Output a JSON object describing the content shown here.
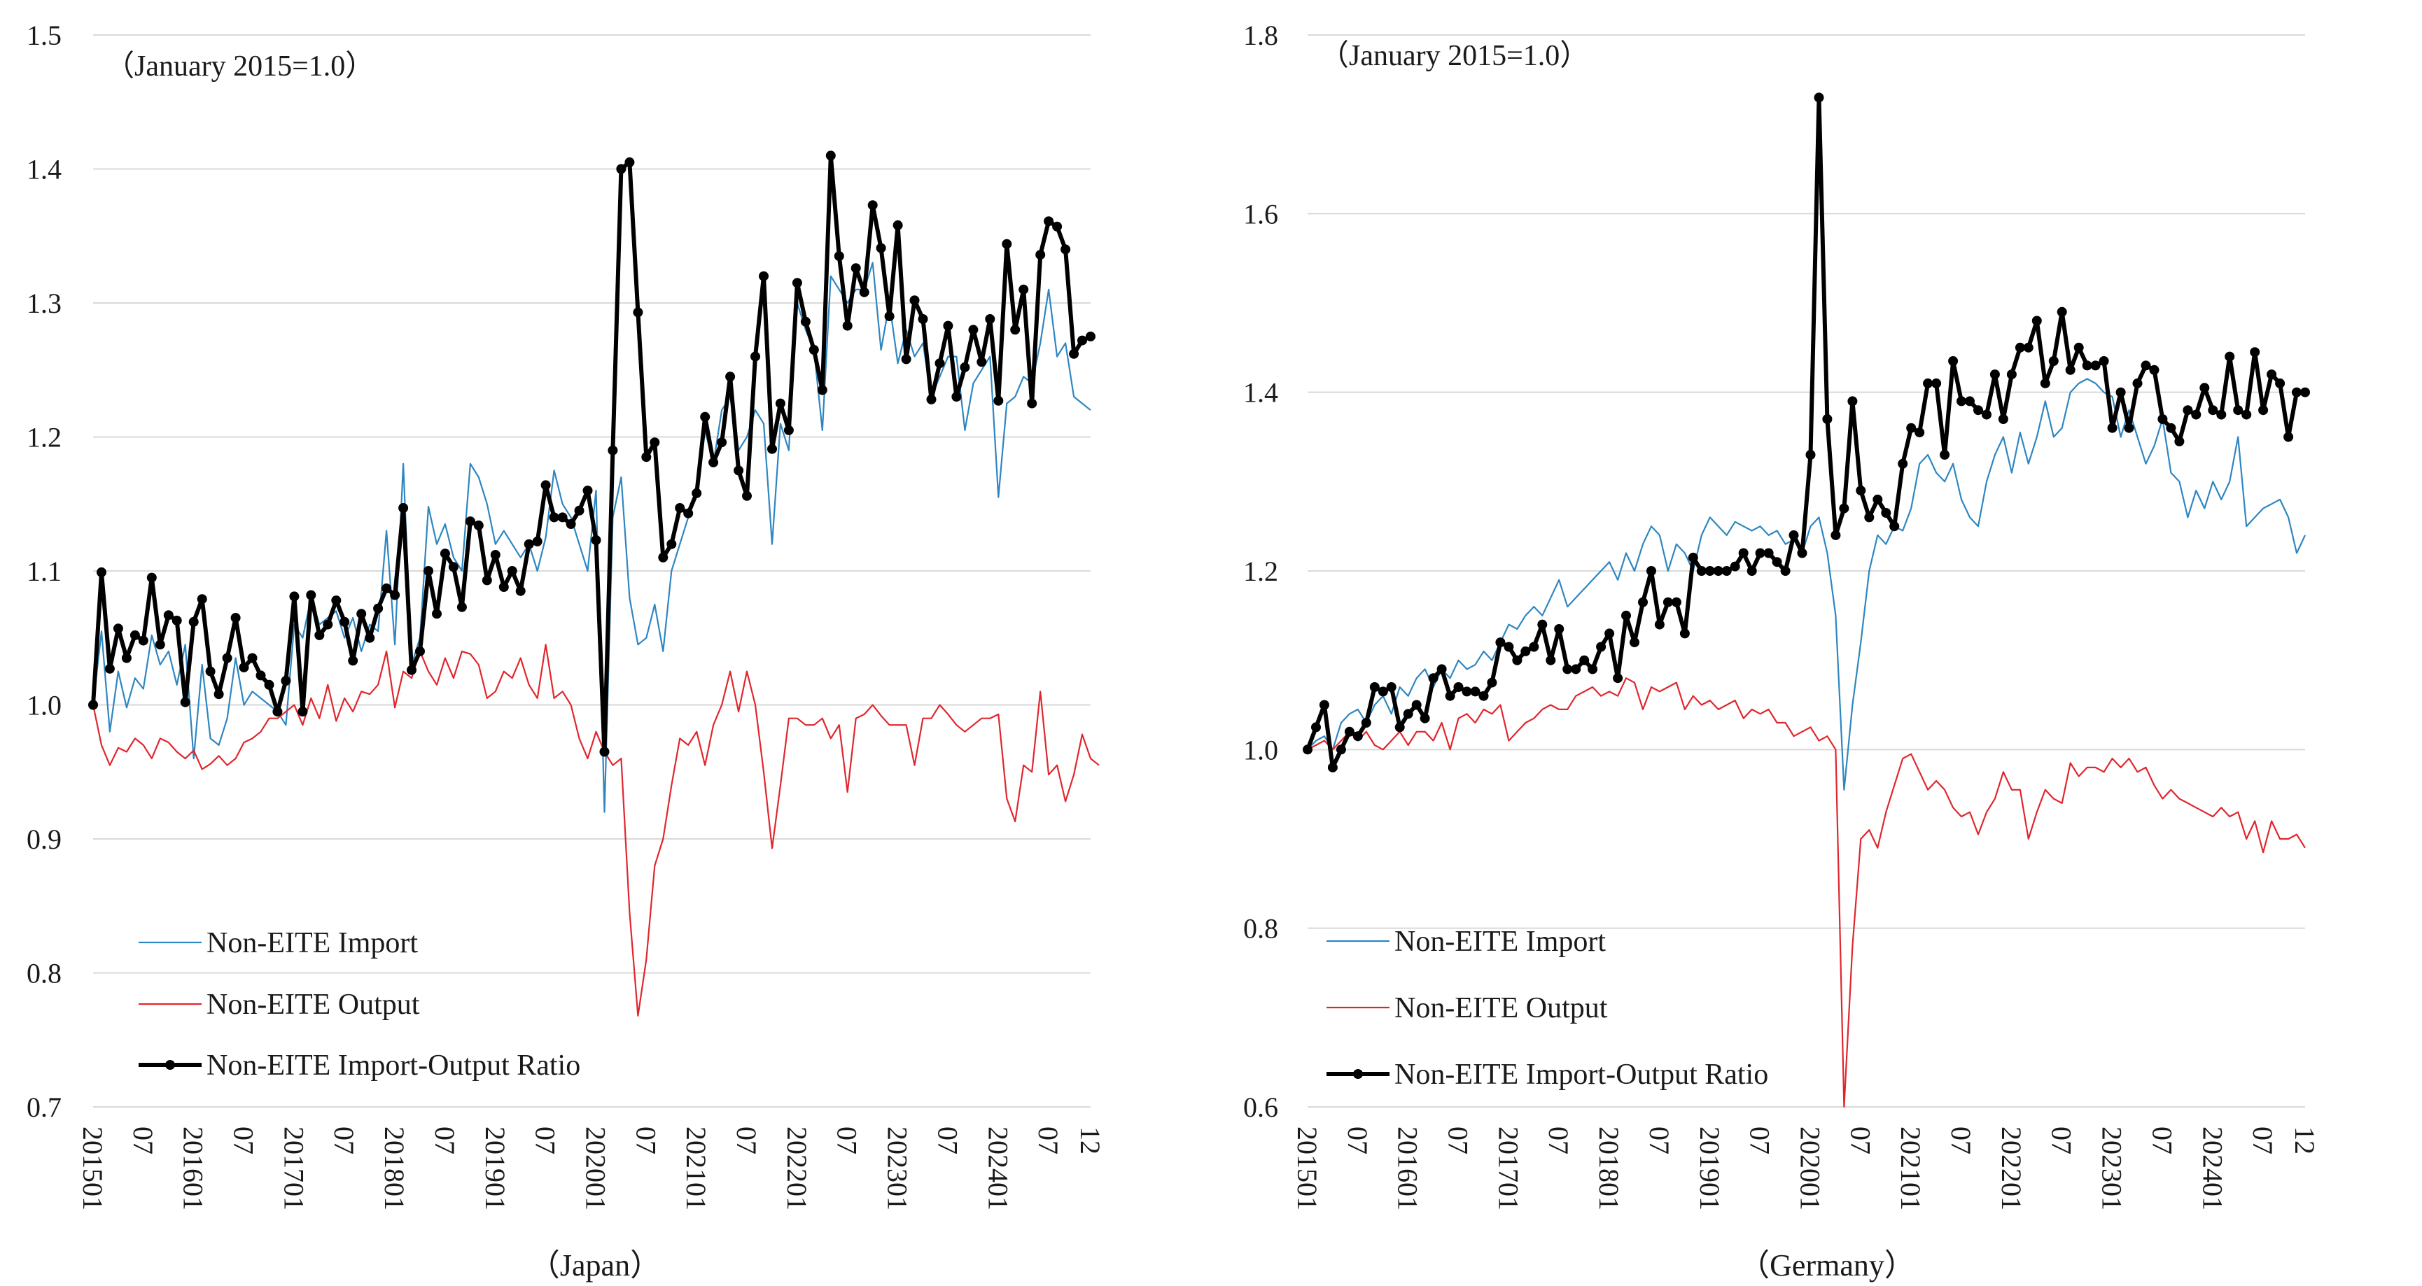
{
  "colors": {
    "import": "#2e86c1",
    "output": "#e0262d",
    "ratio": "#000000",
    "grid": "#d9d9d9"
  },
  "chart_data": [
    {
      "type": "line",
      "caption": "（Japan）",
      "note": "（January 2015=1.0）",
      "ylim": [
        0.7,
        1.5
      ],
      "yticks": [
        0.7,
        0.8,
        0.9,
        1.0,
        1.1,
        1.2,
        1.3,
        1.4,
        1.5
      ],
      "ytick_labels": [
        "0.7",
        "0.8",
        "0.9",
        "1.0",
        "1.1",
        "1.2",
        "1.3",
        "1.4",
        "1.5"
      ],
      "x_start": "201501",
      "n_months": 120,
      "xtick_labels": [
        {
          "i": 0,
          "label": "201501"
        },
        {
          "i": 6,
          "label": "07"
        },
        {
          "i": 12,
          "label": "201601"
        },
        {
          "i": 18,
          "label": "07"
        },
        {
          "i": 24,
          "label": "201701"
        },
        {
          "i": 30,
          "label": "07"
        },
        {
          "i": 36,
          "label": "201801"
        },
        {
          "i": 42,
          "label": "07"
        },
        {
          "i": 48,
          "label": "201901"
        },
        {
          "i": 54,
          "label": "07"
        },
        {
          "i": 60,
          "label": "202001"
        },
        {
          "i": 66,
          "label": "07"
        },
        {
          "i": 72,
          "label": "202101"
        },
        {
          "i": 78,
          "label": "07"
        },
        {
          "i": 84,
          "label": "202201"
        },
        {
          "i": 90,
          "label": "07"
        },
        {
          "i": 96,
          "label": "202301"
        },
        {
          "i": 102,
          "label": "07"
        },
        {
          "i": 108,
          "label": "202401"
        },
        {
          "i": 114,
          "label": "07"
        },
        {
          "i": 119,
          "label": "12"
        }
      ],
      "legend": {
        "position": "bottom-left"
      },
      "series": [
        {
          "name": "Non-EITE Import",
          "key": "import",
          "values": [
            1.0,
            1.055,
            0.98,
            1.025,
            0.998,
            1.02,
            1.012,
            1.052,
            1.03,
            1.04,
            1.015,
            1.045,
            0.96,
            1.03,
            0.975,
            0.97,
            0.99,
            1.035,
            1.0,
            1.01,
            1.005,
            1.0,
            0.995,
            0.985,
            1.06,
            1.05,
            1.08,
            1.06,
            1.065,
            1.07,
            1.05,
            1.065,
            1.04,
            1.06,
            1.055,
            1.13,
            1.045,
            1.18,
            1.03,
            1.05,
            1.148,
            1.12,
            1.135,
            1.11,
            1.1,
            1.18,
            1.17,
            1.15,
            1.12,
            1.13,
            1.12,
            1.11,
            1.12,
            1.1,
            1.125,
            1.175,
            1.15,
            1.14,
            1.12,
            1.1,
            1.16,
            0.92,
            1.14,
            1.17,
            1.08,
            1.045,
            1.05,
            1.075,
            1.04,
            1.1,
            1.12,
            1.14,
            1.16,
            1.205,
            1.18,
            1.22,
            1.23,
            1.19,
            1.2,
            1.22,
            1.21,
            1.12,
            1.21,
            1.19,
            1.3,
            1.28,
            1.265,
            1.205,
            1.32,
            1.31,
            1.3,
            1.31,
            1.31,
            1.33,
            1.265,
            1.3,
            1.255,
            1.28,
            1.26,
            1.27,
            1.23,
            1.245,
            1.26,
            1.26,
            1.205,
            1.24,
            1.25,
            1.26,
            1.155,
            1.225,
            1.23,
            1.245,
            1.24,
            1.27,
            1.31,
            1.26,
            1.27,
            1.23,
            1.225,
            1.22
          ]
        },
        {
          "name": "Non-EITE Output",
          "key": "output",
          "values": [
            1.0,
            0.97,
            0.955,
            0.968,
            0.965,
            0.975,
            0.97,
            0.96,
            0.975,
            0.972,
            0.965,
            0.96,
            0.966,
            0.952,
            0.956,
            0.962,
            0.955,
            0.96,
            0.972,
            0.975,
            0.98,
            0.99,
            0.99,
            0.995,
            1.0,
            0.985,
            1.005,
            0.99,
            1.015,
            0.988,
            1.005,
            0.995,
            1.01,
            1.008,
            1.015,
            1.04,
            0.998,
            1.025,
            1.02,
            1.04,
            1.025,
            1.015,
            1.035,
            1.02,
            1.04,
            1.038,
            1.03,
            1.005,
            1.01,
            1.025,
            1.02,
            1.035,
            1.015,
            1.005,
            1.045,
            1.005,
            1.01,
            1.0,
            0.975,
            0.96,
            0.98,
            0.965,
            0.955,
            0.96,
            0.845,
            0.768,
            0.81,
            0.88,
            0.9,
            0.94,
            0.975,
            0.97,
            0.98,
            0.955,
            0.985,
            1.0,
            1.025,
            0.995,
            1.025,
            1.0,
            0.95,
            0.893,
            0.94,
            0.99,
            0.99,
            0.985,
            0.985,
            0.99,
            0.975,
            0.985,
            0.935,
            0.99,
            0.993,
            1.0,
            0.992,
            0.985,
            0.985,
            0.985,
            0.955,
            0.99,
            0.99,
            1.0,
            0.993,
            0.985,
            0.98,
            0.985,
            0.99,
            0.99,
            0.993,
            0.93,
            0.913,
            0.955,
            0.95,
            1.01,
            0.948,
            0.955,
            0.928,
            0.948,
            0.978,
            0.96,
            0.955
          ]
        },
        {
          "name": "Non-EITE Import-Output Ratio",
          "key": "ratio",
          "values": [
            1.0,
            1.099,
            1.027,
            1.057,
            1.035,
            1.052,
            1.048,
            1.095,
            1.045,
            1.067,
            1.063,
            1.002,
            1.062,
            1.079,
            1.025,
            1.008,
            1.035,
            1.065,
            1.028,
            1.035,
            1.022,
            1.015,
            0.995,
            1.018,
            1.081,
            0.995,
            1.082,
            1.052,
            1.06,
            1.078,
            1.062,
            1.033,
            1.068,
            1.05,
            1.072,
            1.087,
            1.082,
            1.147,
            1.026,
            1.04,
            1.1,
            1.068,
            1.113,
            1.103,
            1.073,
            1.137,
            1.134,
            1.093,
            1.112,
            1.088,
            1.1,
            1.085,
            1.12,
            1.122,
            1.164,
            1.14,
            1.14,
            1.135,
            1.145,
            1.16,
            1.123,
            0.965,
            1.19,
            1.4,
            1.405,
            1.293,
            1.185,
            1.196,
            1.11,
            1.12,
            1.147,
            1.143,
            1.158,
            1.215,
            1.181,
            1.196,
            1.245,
            1.175,
            1.156,
            1.26,
            1.32,
            1.191,
            1.225,
            1.205,
            1.315,
            1.286,
            1.265,
            1.235,
            1.41,
            1.335,
            1.283,
            1.326,
            1.308,
            1.373,
            1.341,
            1.29,
            1.358,
            1.258,
            1.302,
            1.288,
            1.228,
            1.255,
            1.283,
            1.23,
            1.252,
            1.28,
            1.256,
            1.288,
            1.227,
            1.344,
            1.28,
            1.31,
            1.225,
            1.336,
            1.361,
            1.357,
            1.34,
            1.262,
            1.272,
            1.275
          ]
        }
      ]
    },
    {
      "type": "line",
      "caption": "（Germany）",
      "note": "（January 2015=1.0）",
      "ylim": [
        0.6,
        1.8
      ],
      "yticks": [
        0.6,
        0.8,
        1.0,
        1.2,
        1.4,
        1.6,
        1.8
      ],
      "ytick_labels": [
        "0.6",
        "0.8",
        "1.0",
        "1.2",
        "1.4",
        "1.6",
        "1.8"
      ],
      "x_start": "201501",
      "n_months": 120,
      "xtick_labels": [
        {
          "i": 0,
          "label": "201501"
        },
        {
          "i": 6,
          "label": "07"
        },
        {
          "i": 12,
          "label": "201601"
        },
        {
          "i": 18,
          "label": "07"
        },
        {
          "i": 24,
          "label": "201701"
        },
        {
          "i": 30,
          "label": "07"
        },
        {
          "i": 36,
          "label": "201801"
        },
        {
          "i": 42,
          "label": "07"
        },
        {
          "i": 48,
          "label": "201901"
        },
        {
          "i": 54,
          "label": "07"
        },
        {
          "i": 60,
          "label": "202001"
        },
        {
          "i": 66,
          "label": "07"
        },
        {
          "i": 72,
          "label": "202101"
        },
        {
          "i": 78,
          "label": "07"
        },
        {
          "i": 84,
          "label": "202201"
        },
        {
          "i": 90,
          "label": "07"
        },
        {
          "i": 96,
          "label": "202301"
        },
        {
          "i": 102,
          "label": "07"
        },
        {
          "i": 108,
          "label": "202401"
        },
        {
          "i": 114,
          "label": "07"
        },
        {
          "i": 119,
          "label": "12"
        }
      ],
      "legend": {
        "position": "bottom-left"
      },
      "series": [
        {
          "name": "Non-EITE Import",
          "key": "import",
          "values": [
            1.0,
            1.01,
            1.015,
            1.0,
            1.03,
            1.04,
            1.045,
            1.03,
            1.05,
            1.06,
            1.04,
            1.07,
            1.06,
            1.08,
            1.09,
            1.07,
            1.09,
            1.08,
            1.1,
            1.09,
            1.095,
            1.11,
            1.1,
            1.12,
            1.14,
            1.135,
            1.15,
            1.16,
            1.15,
            1.17,
            1.19,
            1.16,
            1.17,
            1.18,
            1.19,
            1.2,
            1.21,
            1.19,
            1.22,
            1.2,
            1.23,
            1.25,
            1.24,
            1.2,
            1.23,
            1.22,
            1.2,
            1.24,
            1.26,
            1.25,
            1.24,
            1.255,
            1.25,
            1.245,
            1.25,
            1.24,
            1.245,
            1.23,
            1.235,
            1.22,
            1.25,
            1.26,
            1.22,
            1.15,
            0.955,
            1.05,
            1.12,
            1.2,
            1.24,
            1.23,
            1.25,
            1.245,
            1.27,
            1.32,
            1.33,
            1.31,
            1.3,
            1.32,
            1.28,
            1.26,
            1.25,
            1.3,
            1.33,
            1.35,
            1.31,
            1.355,
            1.32,
            1.35,
            1.39,
            1.35,
            1.36,
            1.4,
            1.41,
            1.415,
            1.41,
            1.4,
            1.395,
            1.35,
            1.38,
            1.35,
            1.32,
            1.34,
            1.37,
            1.31,
            1.3,
            1.26,
            1.29,
            1.27,
            1.3,
            1.28,
            1.3,
            1.35,
            1.25,
            1.26,
            1.27,
            1.275,
            1.28,
            1.26,
            1.22,
            1.24
          ]
        },
        {
          "name": "Non-EITE Output",
          "key": "output",
          "values": [
            1.0,
            1.005,
            1.01,
            1.0,
            1.01,
            1.02,
            1.01,
            1.02,
            1.005,
            1.0,
            1.01,
            1.02,
            1.005,
            1.02,
            1.02,
            1.01,
            1.03,
            1.0,
            1.035,
            1.04,
            1.03,
            1.045,
            1.04,
            1.05,
            1.01,
            1.02,
            1.03,
            1.035,
            1.045,
            1.05,
            1.045,
            1.045,
            1.06,
            1.065,
            1.07,
            1.06,
            1.065,
            1.06,
            1.08,
            1.075,
            1.045,
            1.07,
            1.065,
            1.07,
            1.075,
            1.045,
            1.06,
            1.05,
            1.055,
            1.045,
            1.05,
            1.055,
            1.035,
            1.045,
            1.04,
            1.045,
            1.03,
            1.03,
            1.015,
            1.02,
            1.025,
            1.01,
            1.015,
            1.0,
            0.6,
            0.78,
            0.9,
            0.91,
            0.89,
            0.93,
            0.96,
            0.99,
            0.995,
            0.975,
            0.955,
            0.965,
            0.955,
            0.935,
            0.925,
            0.93,
            0.905,
            0.93,
            0.945,
            0.975,
            0.955,
            0.955,
            0.9,
            0.93,
            0.955,
            0.945,
            0.94,
            0.985,
            0.97,
            0.98,
            0.98,
            0.975,
            0.99,
            0.98,
            0.99,
            0.975,
            0.98,
            0.96,
            0.945,
            0.955,
            0.945,
            0.94,
            0.935,
            0.93,
            0.925,
            0.935,
            0.925,
            0.93,
            0.9,
            0.92,
            0.885,
            0.92,
            0.9,
            0.9,
            0.905,
            0.89
          ]
        },
        {
          "name": "Non-EITE Import-Output Ratio",
          "key": "ratio",
          "values": [
            1.0,
            1.025,
            1.05,
            0.98,
            1.0,
            1.02,
            1.015,
            1.03,
            1.07,
            1.065,
            1.07,
            1.025,
            1.04,
            1.05,
            1.035,
            1.08,
            1.09,
            1.06,
            1.07,
            1.065,
            1.065,
            1.06,
            1.075,
            1.12,
            1.115,
            1.1,
            1.11,
            1.115,
            1.14,
            1.1,
            1.135,
            1.09,
            1.09,
            1.1,
            1.09,
            1.115,
            1.13,
            1.08,
            1.15,
            1.12,
            1.165,
            1.2,
            1.14,
            1.165,
            1.165,
            1.13,
            1.215,
            1.2,
            1.2,
            1.2,
            1.2,
            1.205,
            1.22,
            1.2,
            1.22,
            1.22,
            1.21,
            1.2,
            1.24,
            1.22,
            1.33,
            1.73,
            1.37,
            1.24,
            1.27,
            1.39,
            1.29,
            1.26,
            1.28,
            1.265,
            1.25,
            1.32,
            1.36,
            1.355,
            1.41,
            1.41,
            1.33,
            1.435,
            1.39,
            1.39,
            1.38,
            1.375,
            1.42,
            1.37,
            1.42,
            1.45,
            1.45,
            1.48,
            1.41,
            1.435,
            1.49,
            1.425,
            1.45,
            1.43,
            1.43,
            1.435,
            1.36,
            1.4,
            1.36,
            1.41,
            1.43,
            1.425,
            1.37,
            1.36,
            1.345,
            1.38,
            1.375,
            1.405,
            1.38,
            1.375,
            1.44,
            1.38,
            1.375,
            1.445,
            1.38,
            1.42,
            1.41,
            1.35,
            1.4,
            1.4
          ]
        }
      ]
    }
  ]
}
